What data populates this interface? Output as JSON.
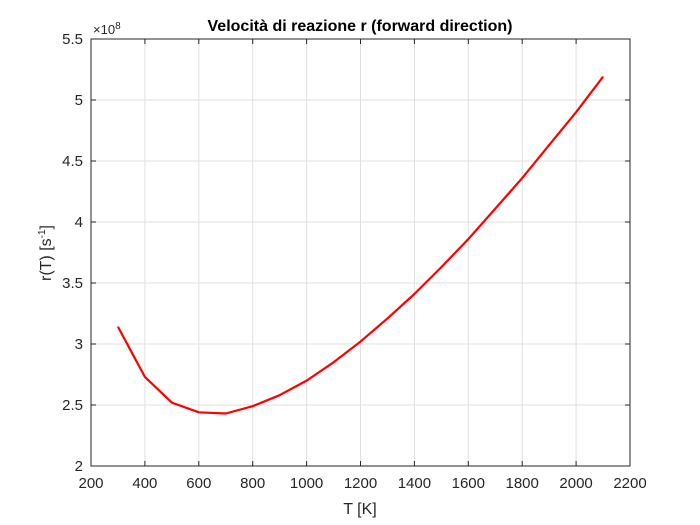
{
  "chart_data": {
    "type": "line",
    "title": "Velocità di reazione r (forward direction)",
    "xlabel": "T [K]",
    "ylabel": {
      "base": "r(T) [s",
      "sup": "-1",
      "close": "]"
    },
    "exponent": {
      "prefix": "×10",
      "power": "8"
    },
    "xlim": [
      200,
      2200
    ],
    "ylim": [
      2.0,
      5.5
    ],
    "x_ticks": [
      200,
      400,
      600,
      800,
      1000,
      1200,
      1400,
      1600,
      1800,
      2000,
      2200
    ],
    "x_tick_labels": [
      "200",
      "400",
      "600",
      "800",
      "1000",
      "1200",
      "1400",
      "1600",
      "1800",
      "2000",
      "2200"
    ],
    "y_ticks": [
      2.0,
      2.5,
      3.0,
      3.5,
      4.0,
      4.5,
      5.0,
      5.5
    ],
    "y_tick_labels": [
      "2",
      "2.5",
      "3",
      "3.5",
      "4",
      "4.5",
      "5",
      "5.5"
    ],
    "grid": true,
    "series": [
      {
        "color": "#ff0000",
        "x": [
          300,
          400,
          500,
          600,
          700,
          800,
          900,
          1000,
          1100,
          1200,
          1300,
          1400,
          1500,
          1600,
          1700,
          1800,
          1900,
          2000,
          2100
        ],
        "y": [
          3.14,
          2.73,
          2.52,
          2.44,
          2.43,
          2.49,
          2.58,
          2.7,
          2.85,
          3.02,
          3.21,
          3.41,
          3.63,
          3.86,
          4.11,
          4.36,
          4.63,
          4.9,
          5.19
        ]
      }
    ]
  }
}
